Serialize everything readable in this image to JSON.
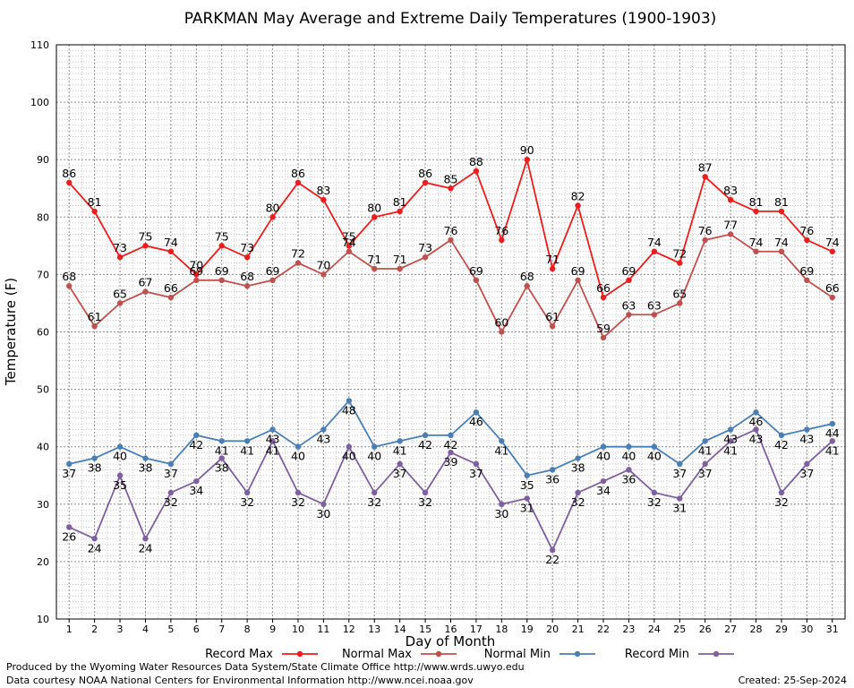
{
  "chart_data": {
    "type": "line",
    "title": "PARKMAN May Average and Extreme Daily Temperatures (1900-1903)",
    "xlabel": "Day of Month",
    "ylabel": "Temperature (F)",
    "x": [
      1,
      2,
      3,
      4,
      5,
      6,
      7,
      8,
      9,
      10,
      11,
      12,
      13,
      14,
      15,
      16,
      17,
      18,
      19,
      20,
      21,
      22,
      23,
      24,
      25,
      26,
      27,
      28,
      29,
      30,
      31
    ],
    "xlim": [
      0.5,
      31.5
    ],
    "ylim": [
      10,
      110
    ],
    "yticks": [
      10,
      20,
      30,
      40,
      50,
      60,
      70,
      80,
      90,
      100,
      110
    ],
    "grid": true,
    "legend_position": "bottom",
    "series": [
      {
        "name": "Record Max",
        "color": "#ee1c1c",
        "label_position": "above",
        "values": [
          86,
          81,
          73,
          75,
          74,
          70,
          75,
          73,
          80,
          86,
          83,
          75,
          80,
          81,
          86,
          85,
          88,
          76,
          90,
          71,
          82,
          66,
          69,
          74,
          72,
          87,
          83,
          81,
          81,
          76,
          74
        ]
      },
      {
        "name": "Normal Max",
        "color": "#c0504d",
        "label_position": "above",
        "values": [
          68,
          61,
          65,
          67,
          66,
          69,
          69,
          68,
          69,
          72,
          70,
          74,
          71,
          71,
          73,
          76,
          69,
          60,
          68,
          61,
          69,
          59,
          63,
          63,
          65,
          76,
          77,
          74,
          74,
          69,
          66
        ]
      },
      {
        "name": "Normal Min",
        "color": "#4a7fb5",
        "label_position": "below",
        "values": [
          37,
          38,
          40,
          38,
          37,
          42,
          41,
          41,
          43,
          40,
          43,
          48,
          40,
          41,
          42,
          42,
          46,
          41,
          35,
          36,
          38,
          40,
          40,
          40,
          37,
          41,
          43,
          46,
          42,
          43,
          44
        ]
      },
      {
        "name": "Record Min",
        "color": "#7f5f9f",
        "label_position": "below",
        "values": [
          26,
          24,
          35,
          24,
          32,
          34,
          38,
          32,
          41,
          32,
          30,
          40,
          32,
          37,
          32,
          39,
          37,
          30,
          31,
          22,
          32,
          34,
          36,
          32,
          31,
          37,
          41,
          43,
          32,
          37,
          41
        ]
      }
    ]
  },
  "footer": {
    "produced_by": "Produced by the Wyoming Water Resources Data System/State Climate Office http://www.wrds.uwyo.edu",
    "courtesy": "Data courtesy NOAA National Centers for Environmental Information http://www.ncei.noaa.gov",
    "created": "Created: 25-Sep-2024"
  }
}
